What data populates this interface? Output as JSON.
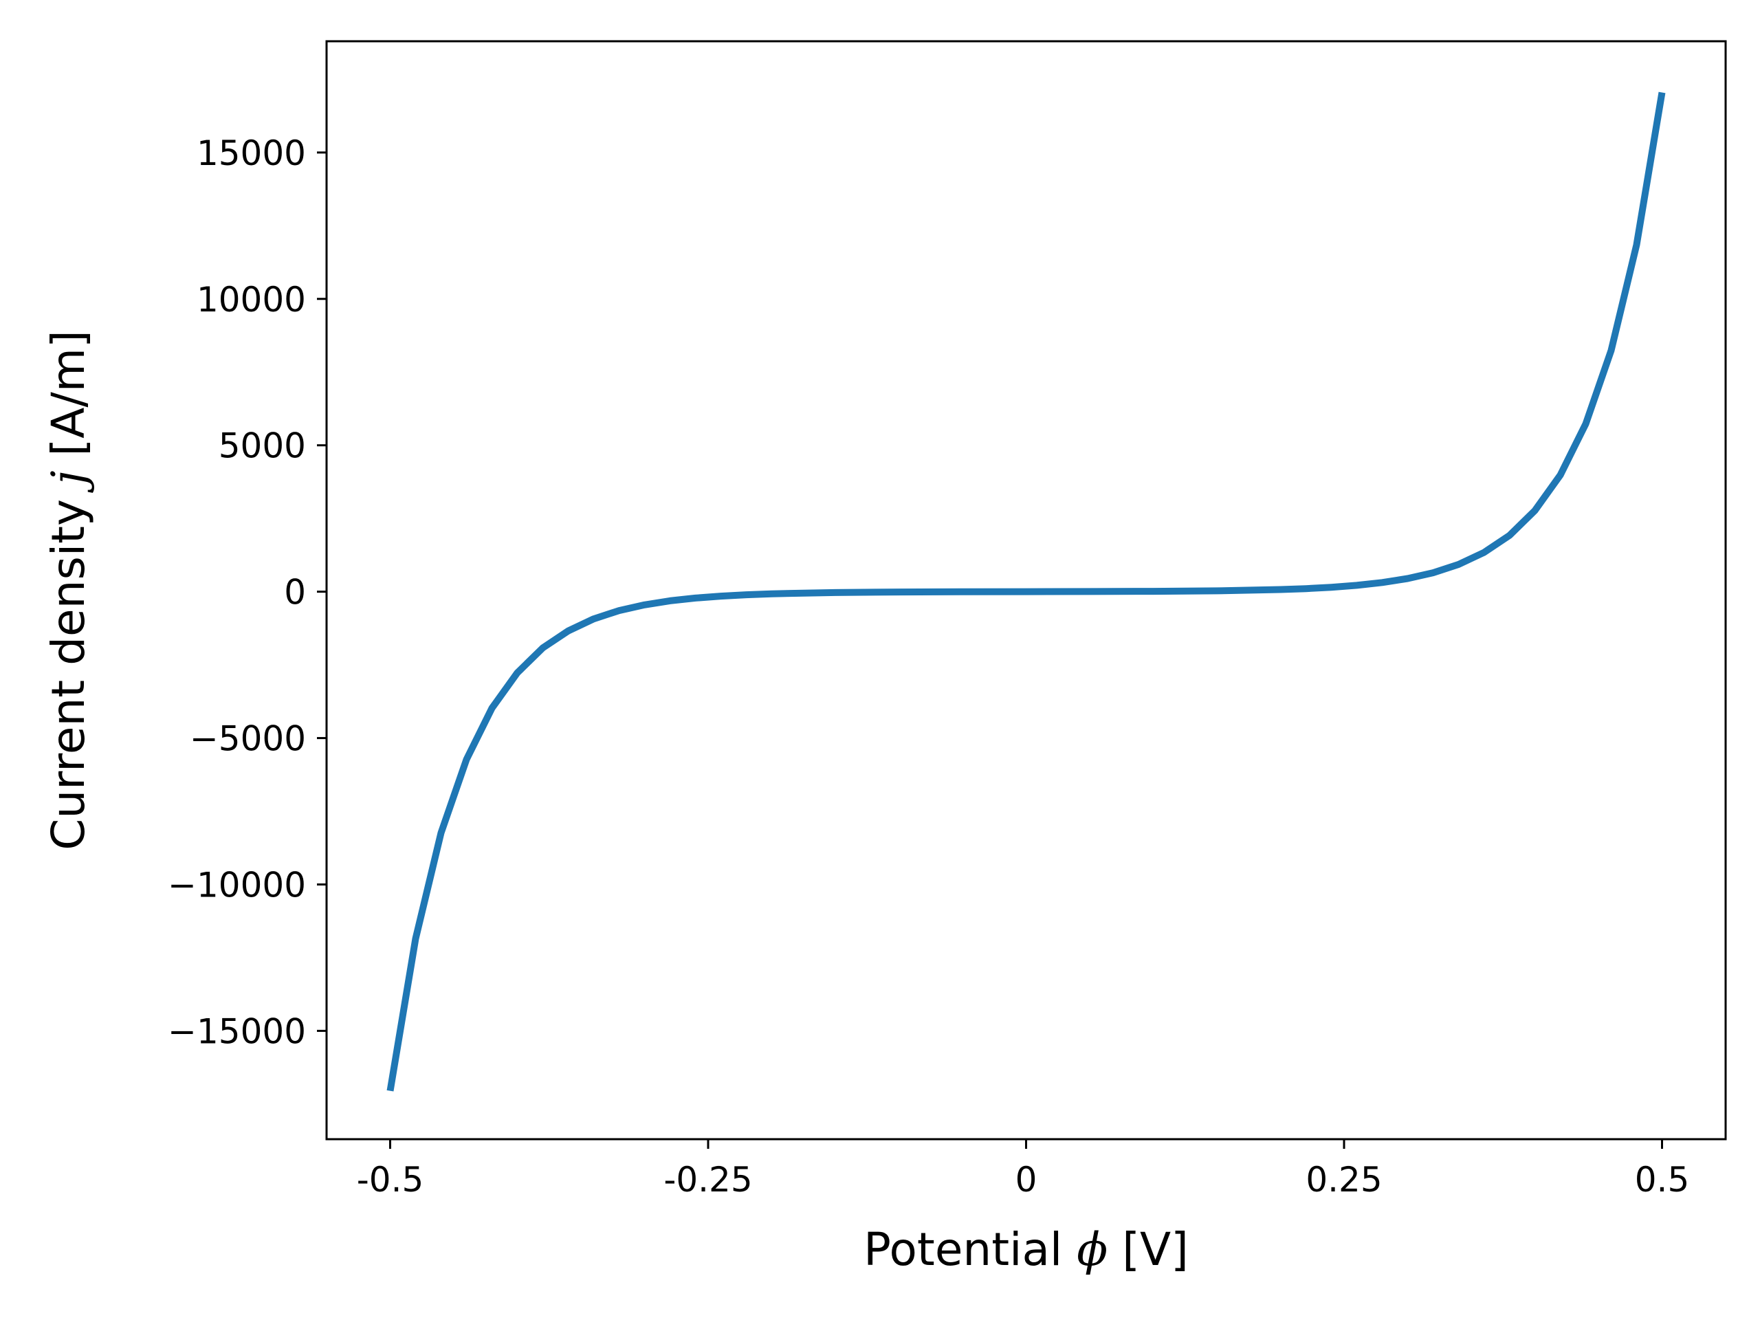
{
  "chart_data": {
    "type": "line",
    "title": "",
    "xlabel": {
      "prefix": "Potential ",
      "symbol": "ϕ",
      "suffix": " [V]"
    },
    "ylabel": {
      "prefix": "Current density ",
      "symbol": "j",
      "suffix": " [A/m]"
    },
    "xlim": [
      -0.55,
      0.55
    ],
    "ylim": [
      -18700,
      18800
    ],
    "xticks": [
      {
        "value": -0.5,
        "label": "-0.5"
      },
      {
        "value": -0.25,
        "label": "-0.25"
      },
      {
        "value": 0,
        "label": "0"
      },
      {
        "value": 0.25,
        "label": "0.25"
      },
      {
        "value": 0.5,
        "label": "0.5"
      }
    ],
    "yticks": [
      {
        "value": -15000,
        "label": "−15000"
      },
      {
        "value": -10000,
        "label": "−10000"
      },
      {
        "value": -5000,
        "label": "−5000"
      },
      {
        "value": 0,
        "label": "0"
      },
      {
        "value": 5000,
        "label": "5000"
      },
      {
        "value": 10000,
        "label": "10000"
      },
      {
        "value": 15000,
        "label": "15000"
      }
    ],
    "grid": false,
    "series": [
      {
        "color": "#1f77b4",
        "x": [
          -0.5,
          -0.48,
          -0.46,
          -0.44,
          -0.42,
          -0.4,
          -0.38,
          -0.36,
          -0.34,
          -0.32,
          -0.3,
          -0.28,
          -0.26,
          -0.24,
          -0.22,
          -0.2,
          -0.15,
          -0.1,
          -0.05,
          0,
          0.05,
          0.1,
          0.15,
          0.2,
          0.22,
          0.24,
          0.26,
          0.28,
          0.3,
          0.32,
          0.34,
          0.36,
          0.38,
          0.4,
          0.42,
          0.44,
          0.46,
          0.48,
          0.5
        ],
        "y": [
          -17050,
          -11850,
          -8240,
          -5730,
          -3980,
          -2770,
          -1920,
          -1340,
          -930,
          -646,
          -449,
          -312,
          -217,
          -151,
          -105,
          -73,
          -29,
          -12,
          -5,
          0,
          5,
          12,
          29,
          73,
          105,
          151,
          217,
          312,
          449,
          646,
          930,
          1340,
          1920,
          2770,
          3980,
          5730,
          8240,
          11850,
          17050
        ]
      }
    ]
  }
}
